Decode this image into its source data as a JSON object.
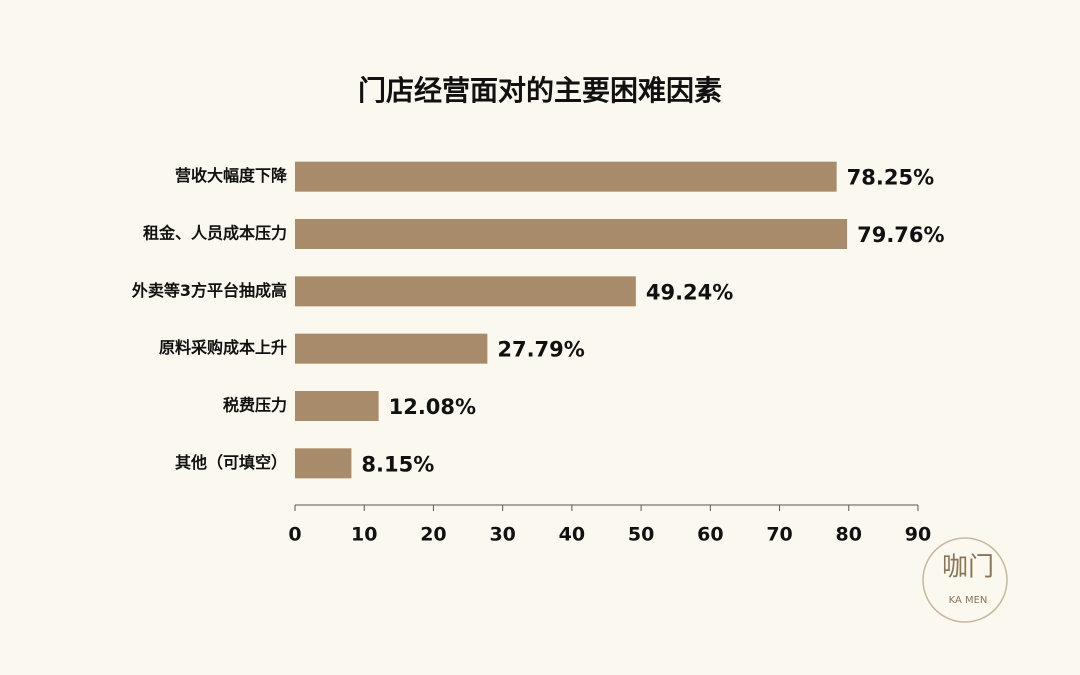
{
  "chart_data": {
    "type": "hbar",
    "title": "门店经营面对的主要困难因素",
    "categories": [
      "营收大幅度下降",
      "租金、人员成本压力",
      "外卖等3方平台抽成高",
      "原料采购成本上升",
      "税费压力",
      "其他（可填空）"
    ],
    "values": [
      78.25,
      79.76,
      49.24,
      27.79,
      12.08,
      8.15
    ],
    "value_labels": [
      "78.25%",
      "79.76%",
      "49.24%",
      "27.79%",
      "12.08%",
      "8.15%"
    ],
    "color": "#a88b6b",
    "xlim": [
      0,
      90
    ],
    "xticks": [
      0,
      10,
      20,
      30,
      40,
      50,
      60,
      70,
      80,
      90
    ],
    "grid": false
  },
  "logo": {
    "mark": "咖门",
    "sub": "KA MEN"
  }
}
